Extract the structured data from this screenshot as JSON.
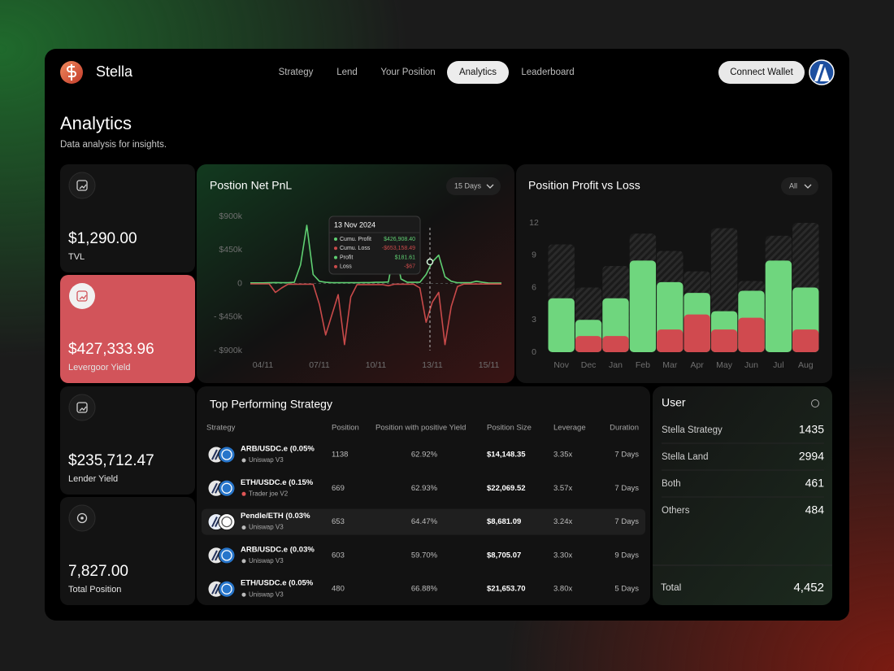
{
  "header": {
    "brand": "Stella",
    "nav": [
      "Strategy",
      "Lend",
      "Your Position",
      "Analytics",
      "Leaderboard"
    ],
    "active_nav": 3,
    "button": "Connect Wallet"
  },
  "page": {
    "title": "Analytics",
    "subtitle": "Data analysis for insights."
  },
  "stats": [
    {
      "value": "$1,290.00",
      "label": "TVL"
    },
    {
      "value": "$427,333.96",
      "label": "Levergoor Yield"
    },
    {
      "value": "$235,712.47",
      "label": "Lender Yield"
    },
    {
      "value": "7,827.00",
      "label": "Total Position"
    }
  ],
  "highlighted_stat": 1,
  "pnl_chart": {
    "type": "line",
    "title": "Postion Net PnL",
    "range_selector": "15 Days",
    "categories": [
      null,
      null,
      "04/11",
      null,
      null,
      null,
      null,
      null,
      null,
      null,
      null,
      "07/11",
      null,
      null,
      null,
      null,
      null,
      null,
      null,
      null,
      "10/11",
      null,
      null,
      null,
      null,
      null,
      null,
      null,
      null,
      "13/11",
      null,
      null,
      null,
      null,
      null,
      null,
      null,
      null,
      "15/11",
      null,
      null
    ],
    "series": [
      {
        "color": "#5fcf72",
        "values": [
          8000,
          8000,
          8000,
          10000,
          12000,
          10000,
          10000,
          15000,
          250000,
          780000,
          120000,
          30000,
          15000,
          10000,
          10000,
          10000,
          10000,
          10000,
          12000,
          12000,
          15000,
          15000,
          20000,
          480000,
          60000,
          15000,
          15000,
          15000,
          120000,
          290000,
          380000,
          90000,
          30000,
          10000,
          10000,
          10000,
          30000,
          15000,
          5000,
          5000,
          5000
        ]
      },
      {
        "color": "#c94a4a",
        "values": [
          -5000,
          -5000,
          -5000,
          -5000,
          -120000,
          -60000,
          -10000,
          -10000,
          -10000,
          -10000,
          -10000,
          -280000,
          -690000,
          -420000,
          -150000,
          -820000,
          -180000,
          -15000,
          -15000,
          -15000,
          -15000,
          -15000,
          -30000,
          -10000,
          -10000,
          -10000,
          -10000,
          -60000,
          -520000,
          -250000,
          -120000,
          -820000,
          -310000,
          -40000,
          -8000,
          -8000,
          -8000,
          -8000,
          -8000,
          -8000,
          -8000
        ]
      }
    ],
    "ylim": [
      -900000,
      900000
    ],
    "yticks": [
      {
        "value": 900000,
        "label": "$900k"
      },
      {
        "value": 450000,
        "label": "$450k"
      },
      0,
      {
        "value": -450000,
        "label": "- $450k"
      },
      {
        "value": -900000,
        "label": "- $900k"
      }
    ],
    "tooltip": {
      "title": "13 Nov 2024",
      "rows": [
        {
          "label": "Cumu. Profit",
          "value": "$426,908.40",
          "color": "#5fcf72"
        },
        {
          "label": "Cumu. Loss",
          "value": "-$653,158.49",
          "color": "#c94a4a"
        },
        {
          "label": "Profit",
          "value": "$181.61",
          "color": "#5fcf72"
        },
        {
          "label": "Loss",
          "value": "-$67",
          "color": "#c94a4a"
        }
      ]
    }
  },
  "bar_chart": {
    "type": "bar",
    "title": "Position Profit vs Loss",
    "range_selector": "All",
    "categories": [
      "Nov",
      "Dec",
      "Jan",
      "Feb",
      "Mar",
      "Apr",
      "May",
      "Jun",
      "Jul",
      "Aug"
    ],
    "series": [
      {
        "color": "#2a2a2a",
        "pattern": "hatch",
        "values": [
          10,
          6,
          8,
          11,
          9.4,
          7.5,
          11.5,
          6.6,
          10.8,
          12
        ]
      },
      {
        "color": "#6fd67e",
        "values": [
          5,
          3,
          5,
          8.5,
          6.5,
          5.5,
          3.8,
          5.7,
          8.5,
          6
        ]
      },
      {
        "color": "#d04a4f",
        "values": [
          0,
          1.5,
          1.5,
          0,
          2.1,
          3.5,
          2.1,
          3.2,
          0,
          2.1
        ]
      }
    ],
    "ylim": [
      0,
      12
    ],
    "yticks": [
      0,
      3,
      6,
      9,
      12
    ]
  },
  "table": {
    "title": "Top Performing Strategy",
    "columns": [
      "Strategy",
      "Position",
      "Position with positive Yield",
      "Position Size",
      "Leverage",
      "Duration"
    ],
    "rows": [
      [
        "ARB/USDC.e (0.05%",
        "Uniswap V3",
        "1138",
        "62.92%",
        "$14,148.35",
        "3.35x",
        "7 Days"
      ],
      [
        "ETH/USDC.e (0.15%",
        "Trader joe V2",
        "669",
        "62.93%",
        "$22,069.52",
        "3.57x",
        "7 Days"
      ],
      [
        "Pendle/ETH (0.03%",
        "Uniswap V3",
        "653",
        "64.47%",
        "$8,681.09",
        "3.24x",
        "7 Days"
      ],
      [
        "ARB/USDC.e (0.03%",
        "Uniswap V3",
        "603",
        "59.70%",
        "$8,705.07",
        "3.30x",
        "9 Days"
      ],
      [
        "ETH/USDC.e (0.05%",
        "Uniswap V3",
        "480",
        "66.88%",
        "$21,653.70",
        "3.80x",
        "5 Days"
      ]
    ],
    "highlighted_row": 2
  },
  "users": {
    "title": "User",
    "rows": [
      [
        "Stella Strategy",
        "1435"
      ],
      [
        "Stella Land",
        "2994"
      ],
      [
        "Both",
        "461"
      ],
      [
        "Others",
        "484"
      ]
    ],
    "total": [
      "Total",
      "4,452"
    ]
  }
}
